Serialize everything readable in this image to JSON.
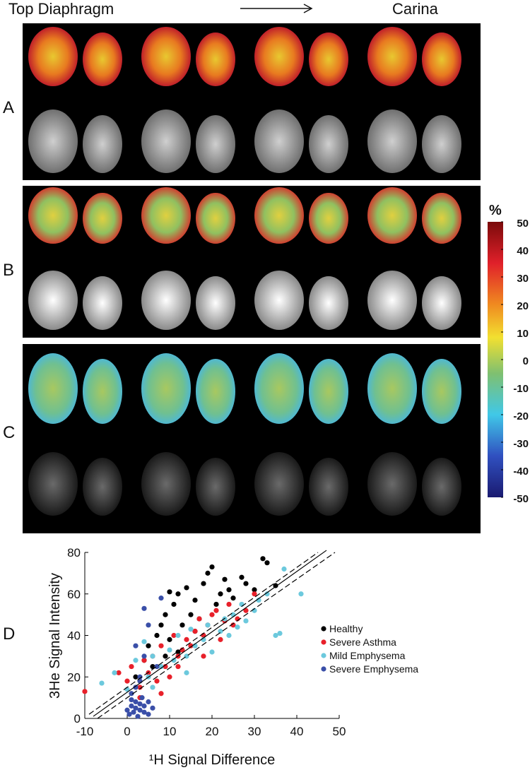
{
  "header": {
    "left": "Top Diaphragm",
    "right": "Carina"
  },
  "panels": [
    "A",
    "B",
    "C",
    "D"
  ],
  "colorbar": {
    "label": "%",
    "lim": [
      -50,
      50
    ],
    "ticks": [
      50,
      40,
      30,
      20,
      10,
      0,
      -10,
      -20,
      -30,
      -40,
      -50
    ]
  },
  "chart_data": {
    "type": "scatter",
    "x_label": "¹H Signal Difference",
    "y_label": "3He Signal Intensity",
    "xlim": [
      -10,
      50
    ],
    "ylim": [
      0,
      80
    ],
    "xticks": [
      -10,
      0,
      10,
      20,
      30,
      40,
      50
    ],
    "yticks": [
      0,
      20,
      40,
      60,
      80
    ],
    "series": [
      {
        "name": "Healthy",
        "color": "#000000",
        "x": [
          2,
          4,
          5,
          6,
          7,
          8,
          9,
          10,
          10,
          11,
          12,
          13,
          14,
          15,
          16,
          17,
          18,
          19,
          20,
          21,
          22,
          23,
          24,
          25,
          27,
          28,
          30,
          32,
          33,
          35,
          9,
          12,
          16
        ],
        "values": [
          20,
          28,
          35,
          25,
          40,
          45,
          50,
          61,
          38,
          55,
          60,
          45,
          63,
          50,
          57,
          48,
          65,
          70,
          73,
          55,
          60,
          67,
          62,
          58,
          68,
          65,
          62,
          77,
          75,
          64,
          30,
          32,
          42
        ]
      },
      {
        "name": "Severe Asthma",
        "color": "#e8202a",
        "x": [
          -10,
          -2,
          0,
          1,
          3,
          4,
          5,
          6,
          7,
          8,
          9,
          10,
          11,
          12,
          13,
          14,
          15,
          16,
          17,
          18,
          19,
          20,
          21,
          22,
          23,
          24,
          25,
          26,
          28,
          30,
          8,
          12,
          18,
          3
        ],
        "values": [
          13,
          22,
          18,
          25,
          15,
          28,
          22,
          30,
          18,
          35,
          25,
          20,
          40,
          30,
          33,
          38,
          35,
          42,
          48,
          40,
          45,
          50,
          52,
          38,
          47,
          55,
          45,
          48,
          52,
          60,
          12,
          25,
          30,
          10
        ]
      },
      {
        "name": "Mild Emphysema",
        "color": "#6cc9dd",
        "x": [
          -6,
          -3,
          0,
          2,
          4,
          5,
          6,
          8,
          10,
          11,
          12,
          14,
          15,
          16,
          18,
          19,
          20,
          22,
          23,
          24,
          25,
          26,
          27,
          28,
          30,
          31,
          33,
          35,
          36,
          37,
          41,
          6,
          14
        ],
        "values": [
          17,
          22,
          14,
          28,
          37,
          20,
          30,
          25,
          33,
          28,
          40,
          30,
          43,
          35,
          38,
          45,
          32,
          42,
          48,
          40,
          50,
          44,
          55,
          47,
          52,
          57,
          60,
          40,
          41,
          72,
          60,
          15,
          22
        ]
      },
      {
        "name": "Severe Emphysema",
        "color": "#3a4fa8",
        "x": [
          0,
          0.5,
          1,
          1,
          1.5,
          2,
          2,
          2.5,
          3,
          3,
          3.5,
          4,
          4,
          5,
          5,
          6,
          1,
          2,
          3,
          4,
          7,
          4,
          2,
          8,
          5,
          3
        ],
        "values": [
          4,
          2,
          6,
          9,
          3,
          5,
          8,
          1,
          4,
          7,
          10,
          3,
          6,
          2,
          8,
          5,
          12,
          15,
          20,
          30,
          25,
          53,
          35,
          58,
          45,
          18
        ]
      }
    ],
    "fit_lines": [
      {
        "style": "solid",
        "x": [
          -8,
          47
        ],
        "values": [
          1,
          81
        ]
      },
      {
        "style": "dashed",
        "x": [
          -7,
          49
        ],
        "values": [
          0,
          80
        ]
      },
      {
        "style": "dashed",
        "x": [
          -9,
          45
        ],
        "values": [
          2,
          80
        ]
      }
    ]
  }
}
